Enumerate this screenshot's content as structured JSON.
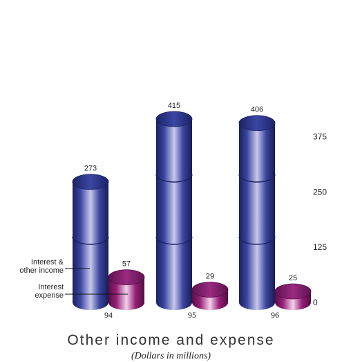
{
  "chart_data": {
    "type": "bar",
    "title": "Other income and expense",
    "subtitle": "(Dollars in millions)",
    "categories": [
      "94",
      "95",
      "96"
    ],
    "series": [
      {
        "name": "Interest & other income",
        "values": [
          273,
          415,
          406
        ],
        "color": "#2b3580"
      },
      {
        "name": "Interest expense",
        "values": [
          57,
          29,
          25
        ],
        "color": "#8a1f6e"
      }
    ],
    "yticks": [
      0,
      125,
      250,
      375
    ],
    "ylim": [
      0,
      415
    ],
    "grid": false,
    "legend": "callout-left",
    "legend_labels": [
      {
        "lines": [
          "Interest &",
          "other income"
        ]
      },
      {
        "lines": [
          "Interest",
          "expense"
        ]
      }
    ]
  }
}
